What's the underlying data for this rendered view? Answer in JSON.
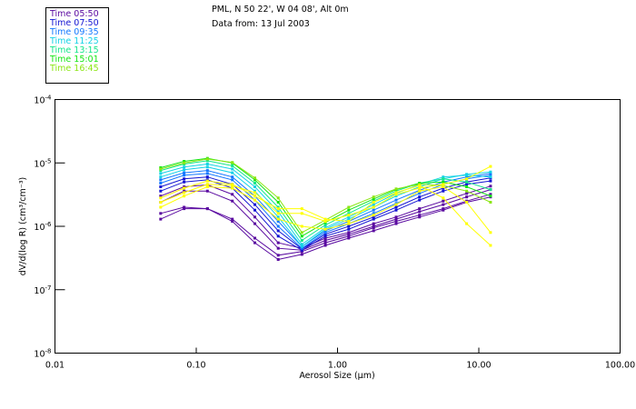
{
  "header": {
    "location": "PML, N 50 22', W 04 08', Alt 0m",
    "date": "Data from: 13 Jul 2003"
  },
  "legend": [
    {
      "label": "Time 05:50",
      "color": "#5a0aa0"
    },
    {
      "label": "Time 07:50",
      "color": "#1414d2"
    },
    {
      "label": "Time 09:35",
      "color": "#1478ff"
    },
    {
      "label": "Time 11:25",
      "color": "#14d2e6"
    },
    {
      "label": "Time 13:15",
      "color": "#14e68c"
    },
    {
      "label": "Time 15:01",
      "color": "#14e614"
    },
    {
      "label": "Time 16:45",
      "color": "#8ce614"
    }
  ],
  "chart_data": {
    "type": "line",
    "title": "PML, N 50 22', W 04 08', Alt 0m",
    "subtitle": "Data from: 13 Jul 2003",
    "xlabel": "Aerosol Size (µm)",
    "ylabel": "dV/d(log R)  (cm³/cm⁻³)",
    "xscale": "log",
    "yscale": "log",
    "xlim": [
      0.01,
      100
    ],
    "ylim": [
      1e-08,
      0.0001
    ],
    "xticks": [
      0.01,
      0.1,
      1,
      10,
      100
    ],
    "xtick_labels": [
      "0.01",
      "0.10",
      "1.00",
      "10.00",
      "100.00"
    ],
    "yticks": [
      0.0001,
      1e-05,
      1e-06,
      1e-07,
      1e-08
    ],
    "ytick_labels": [
      {
        "base": "10",
        "exp": "-4"
      },
      {
        "base": "10",
        "exp": "-5"
      },
      {
        "base": "10",
        "exp": "-6"
      },
      {
        "base": "10",
        "exp": "-7"
      },
      {
        "base": "10",
        "exp": "-8"
      }
    ],
    "grid": false,
    "legend_position": "top-left outside",
    "x": [
      0.056,
      0.082,
      0.12,
      0.18,
      0.26,
      0.38,
      0.56,
      0.82,
      1.2,
      1.8,
      2.6,
      3.8,
      5.6,
      8.2,
      12.1
    ],
    "series": [
      {
        "name": "Time 05:50",
        "color": "#5a0aa0",
        "values": [
          1.3e-06,
          1.9e-06,
          1.9e-06,
          1.2e-06,
          5.5e-07,
          3e-07,
          3.6e-07,
          5e-07,
          6.5e-07,
          8.5e-07,
          1.1e-06,
          1.4e-06,
          1.8e-06,
          2.4e-06,
          2.9e-06
        ]
      },
      {
        "name": "Time 05:50",
        "color": "#5a0aa0",
        "values": [
          1.6e-06,
          2e-06,
          1.9e-06,
          1.3e-06,
          6.5e-07,
          3.5e-07,
          4e-07,
          5.5e-07,
          7e-07,
          9.5e-07,
          1.2e-06,
          1.5e-06,
          1.9e-06,
          2.5e-06,
          3.2e-06
        ]
      },
      {
        "name": "Time 05:50",
        "color": "#5a0aa0",
        "values": [
          2.4e-06,
          3.6e-06,
          3.6e-06,
          2.5e-06,
          1.1e-06,
          4.5e-07,
          4.2e-07,
          6e-07,
          7.5e-07,
          1e-06,
          1.3e-06,
          1.7e-06,
          2.2e-06,
          2.9e-06,
          3.8e-06
        ]
      },
      {
        "name": "Time 05:50",
        "color": "#5a0aa0",
        "values": [
          3e-06,
          4.2e-06,
          4.5e-06,
          3.2e-06,
          1.4e-06,
          5.5e-07,
          4.5e-07,
          6.5e-07,
          8e-07,
          1.1e-06,
          1.4e-06,
          1.9e-06,
          2.5e-06,
          3.3e-06,
          4.3e-06
        ]
      },
      {
        "name": "Time 07:50",
        "color": "#1414d2",
        "values": [
          3.6e-06,
          5e-06,
          5.4e-06,
          4e-06,
          1.8e-06,
          7e-07,
          4.2e-07,
          7e-07,
          9e-07,
          1.3e-06,
          1.8e-06,
          2.6e-06,
          3.6e-06,
          4.6e-06,
          5.2e-06
        ]
      },
      {
        "name": "Time 07:50",
        "color": "#1414d2",
        "values": [
          4.2e-06,
          5.6e-06,
          6e-06,
          4.6e-06,
          2.2e-06,
          8.5e-07,
          4.4e-07,
          7.5e-07,
          1e-06,
          1.4e-06,
          2e-06,
          2.9e-06,
          4e-06,
          5e-06,
          5.8e-06
        ]
      },
      {
        "name": "Time 09:35",
        "color": "#1478ff",
        "values": [
          4.8e-06,
          6.4e-06,
          6.8e-06,
          5.4e-06,
          2.6e-06,
          1e-06,
          4.5e-07,
          8e-07,
          1.1e-06,
          1.6e-06,
          2.3e-06,
          3.3e-06,
          4.6e-06,
          5.6e-06,
          6.4e-06
        ]
      },
      {
        "name": "Time 09:35",
        "color": "#1478ff",
        "values": [
          5.4e-06,
          7e-06,
          7.6e-06,
          6e-06,
          3e-06,
          1.2e-06,
          4.8e-07,
          8.5e-07,
          1.2e-06,
          1.8e-06,
          2.6e-06,
          3.7e-06,
          5e-06,
          6e-06,
          6.8e-06
        ]
      },
      {
        "name": "Time 11:25",
        "color": "#14d2e6",
        "values": [
          6e-06,
          7.8e-06,
          8.6e-06,
          7e-06,
          3.6e-06,
          1.4e-06,
          4.8e-07,
          9e-07,
          1.3e-06,
          2e-06,
          3e-06,
          4.2e-06,
          5.6e-06,
          6.6e-06,
          7.2e-06
        ]
      },
      {
        "name": "Time 11:25",
        "color": "#14d2e6",
        "values": [
          6.8e-06,
          8.6e-06,
          9.6e-06,
          8e-06,
          4.2e-06,
          1.7e-06,
          5.2e-07,
          9.5e-07,
          1.4e-06,
          2.2e-06,
          3.3e-06,
          4.6e-06,
          6e-06,
          6.4e-06,
          6e-06
        ]
      },
      {
        "name": "Time 13:15",
        "color": "#14e68c",
        "values": [
          7.6e-06,
          9.6e-06,
          1.08e-05,
          9e-06,
          4.8e-06,
          2e-06,
          6e-07,
          1.05e-06,
          1.6e-06,
          2.5e-06,
          3.6e-06,
          4.8e-06,
          5.6e-06,
          5e-06,
          3.8e-06
        ]
      },
      {
        "name": "Time 15:01",
        "color": "#14e614",
        "values": [
          8.4e-06,
          1.06e-05,
          1.18e-05,
          1e-05,
          5.4e-06,
          2.4e-06,
          7e-07,
          1.15e-06,
          1.8e-06,
          2.7e-06,
          3.8e-06,
          4.8e-06,
          5e-06,
          4.2e-06,
          3e-06
        ]
      },
      {
        "name": "Time 16:45",
        "color": "#8ce614",
        "values": [
          8e-06,
          1e-05,
          1.15e-05,
          1.02e-05,
          5.8e-06,
          2.8e-06,
          8e-07,
          1.25e-06,
          2e-06,
          2.9e-06,
          3.9e-06,
          4.6e-06,
          4.4e-06,
          3.6e-06,
          2.4e-06
        ]
      },
      {
        "name": "Time 16:45",
        "color": "#ffff00",
        "values": [
          2.4e-06,
          3.4e-06,
          4.6e-06,
          4.4e-06,
          3.4e-06,
          1.6e-06,
          1.6e-06,
          1.2e-06,
          1.5e-06,
          2e-06,
          3.2e-06,
          4e-06,
          4.6e-06,
          5.6e-06,
          8.8e-06
        ]
      },
      {
        "name": "Time 16:45",
        "color": "#ffff00",
        "values": [
          2.8e-06,
          4e-06,
          5.2e-06,
          4.6e-06,
          3e-06,
          1.9e-06,
          1.9e-06,
          1.3e-06,
          1.2e-06,
          2.4e-06,
          3.4e-06,
          4.4e-06,
          2.8e-06,
          1.1e-06,
          5e-07
        ]
      },
      {
        "name": "Time 16:45",
        "color": "#ffff00",
        "values": [
          2e-06,
          3e-06,
          4.2e-06,
          4e-06,
          2.6e-06,
          1.3e-06,
          1e-06,
          9e-07,
          1.1e-06,
          1.5e-06,
          2.2e-06,
          3.6e-06,
          4.2e-06,
          2.4e-06,
          8e-07
        ]
      }
    ]
  }
}
